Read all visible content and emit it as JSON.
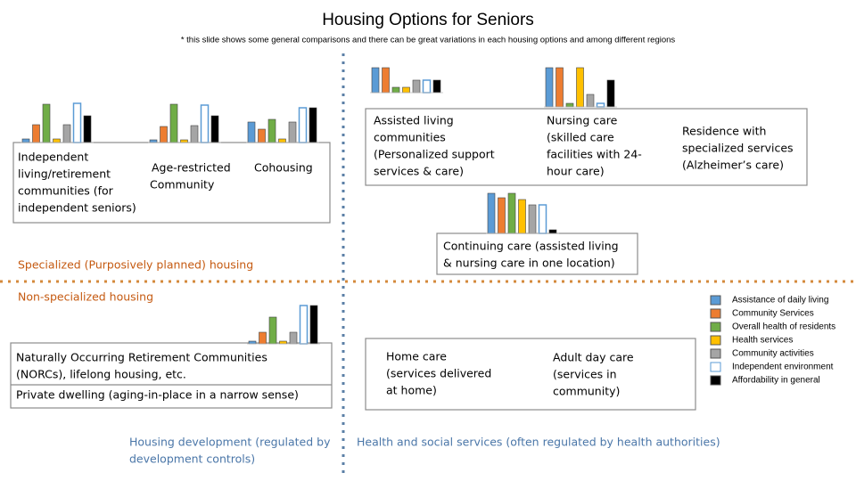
{
  "title": "Housing Options for Seniors",
  "note": "* this slide shows some general comparisons and there can be great variations in each housing options and among different regions",
  "labels": {
    "independent": [
      "Independent",
      "living/retirement",
      "communities (for",
      "independent seniors)"
    ],
    "age_restricted": [
      "Age-restricted",
      "Community"
    ],
    "cohousing": [
      "Cohousing"
    ],
    "specialized": [
      "Specialized (Purposively planned) housing"
    ],
    "non_specialized": [
      "Non-specialized housing"
    ],
    "assisted": [
      "Assisted living",
      "communities",
      "(Personalized support",
      "services & care)"
    ],
    "nursing": [
      "Nursing care",
      "(skilled care",
      "facilities with 24-",
      "hour care)"
    ],
    "residence": [
      "Residence with",
      "specialized services",
      "(Alzheimer’s care)"
    ],
    "continuing": [
      "Continuing care (assisted living",
      "& nursing care in one location)"
    ],
    "norcs": [
      "Naturally Occurring Retirement Communities",
      "(NORCs), lifelong housing, etc."
    ],
    "private": [
      "Private dwelling (aging-in-place in a narrow sense)"
    ],
    "housing_dev": [
      "Housing development (regulated by",
      "development controls)"
    ],
    "home_care": [
      "Home care",
      "(services delivered",
      "at home)"
    ],
    "adult_day": [
      "Adult day care",
      "(services in",
      "community)"
    ],
    "health": [
      "Health and social services (often regulated by health authorities)"
    ]
  },
  "legend": [
    {
      "name": "Assistance of daily living",
      "color": "#5b9bd5"
    },
    {
      "name": "Community Services",
      "color": "#ed7d31"
    },
    {
      "name": "Overall health of residents",
      "color": "#70ad47"
    },
    {
      "name": "Health services",
      "color": "#ffc000"
    },
    {
      "name": "Community activities",
      "color": "#a5a5a5"
    },
    {
      "name": "Independent environment",
      "color": "#ffffff"
    },
    {
      "name": "Affordability in general",
      "color": "#000000"
    }
  ],
  "chart_data": [
    {
      "type": "bar",
      "ylim": [
        0,
        50
      ],
      "values": [
        4,
        20,
        43,
        4,
        20,
        44,
        30
      ]
    },
    {
      "type": "bar",
      "ylim": [
        0,
        50
      ],
      "values": [
        3,
        18,
        43,
        3,
        19,
        42,
        30
      ]
    },
    {
      "type": "bar",
      "ylim": [
        0,
        50
      ],
      "values": [
        23,
        15,
        26,
        4,
        23,
        39,
        39
      ]
    },
    {
      "type": "bar",
      "ylim": [
        0,
        50
      ],
      "values": [
        28,
        28,
        6,
        6,
        14,
        14,
        14
      ]
    },
    {
      "type": "bar",
      "ylim": [
        0,
        50
      ],
      "values": [
        44,
        44,
        4,
        44,
        14,
        4,
        30
      ]
    },
    {
      "type": "bar",
      "ylim": [
        0,
        50
      ],
      "values": [
        45,
        40,
        45,
        38,
        32,
        32,
        4
      ]
    },
    {
      "type": "bar",
      "ylim": [
        0,
        50
      ],
      "values": [
        3,
        13,
        30,
        3,
        13,
        43,
        43
      ]
    }
  ]
}
